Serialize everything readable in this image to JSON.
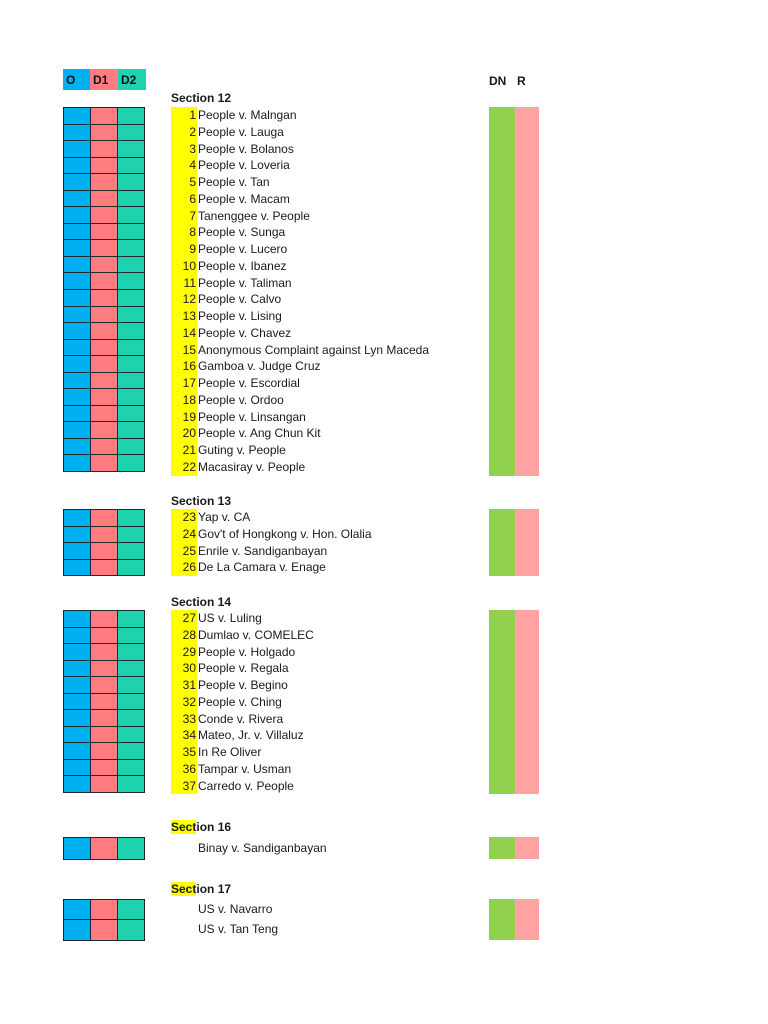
{
  "legend": {
    "o": "O",
    "d1": "D1",
    "d2": "D2"
  },
  "columns": {
    "dn": "DN",
    "r": "R"
  },
  "colors": {
    "o": "#00B0F0",
    "d1": "#FF7C80",
    "d2": "#1ED2B0",
    "number_highlight": "#FFFF00",
    "dn": "#92D050",
    "r": "#FFA3A3"
  },
  "sections": [
    {
      "title_highlight": "",
      "title": "Section 12",
      "cases": [
        {
          "num": "1",
          "name": "People v. Malngan"
        },
        {
          "num": "2",
          "name": "People v. Lauga"
        },
        {
          "num": "3",
          "name": "People v. Bolanos"
        },
        {
          "num": "4",
          "name": "People v. Loveria"
        },
        {
          "num": "5",
          "name": "People v. Tan"
        },
        {
          "num": "6",
          "name": "People v. Macam"
        },
        {
          "num": "7",
          "name": "Tanenggee v. People"
        },
        {
          "num": "8",
          "name": "People v. Sunga"
        },
        {
          "num": "9",
          "name": "People v. Lucero"
        },
        {
          "num": "10",
          "name": "People v. Ibanez"
        },
        {
          "num": "11",
          "name": "People v. Taliman"
        },
        {
          "num": "12",
          "name": "People v. Calvo"
        },
        {
          "num": "13",
          "name": "People v. Lising"
        },
        {
          "num": "14",
          "name": "People v. Chavez"
        },
        {
          "num": "15",
          "name": "Anonymous Complaint against Lyn Maceda"
        },
        {
          "num": "16",
          "name": "Gamboa v. Judge Cruz"
        },
        {
          "num": "17",
          "name": "People v. Escordial"
        },
        {
          "num": "18",
          "name": "People v. Ordoo"
        },
        {
          "num": "19",
          "name": "People v. Linsangan"
        },
        {
          "num": "20",
          "name": "People v. Ang Chun Kit"
        },
        {
          "num": "21",
          "name": "Guting v. People"
        },
        {
          "num": "22",
          "name": "Macasiray v. People"
        }
      ]
    },
    {
      "title_highlight": "",
      "title": "Section 13",
      "cases": [
        {
          "num": "23",
          "name": "Yap v. CA"
        },
        {
          "num": "24",
          "name": "Gov't of Hongkong v. Hon. Olalia"
        },
        {
          "num": "25",
          "name": "Enrile v. Sandiganbayan"
        },
        {
          "num": "26",
          "name": "De La Camara v. Enage"
        }
      ]
    },
    {
      "title_highlight": "",
      "title": "Section 14",
      "cases": [
        {
          "num": "27",
          "name": "US v. Luling"
        },
        {
          "num": "28",
          "name": "Dumlao v. COMELEC"
        },
        {
          "num": "29",
          "name": "People v. Holgado"
        },
        {
          "num": "30",
          "name": "People v. Regala"
        },
        {
          "num": "31",
          "name": "People v. Begino"
        },
        {
          "num": "32",
          "name": "People v. Ching"
        },
        {
          "num": "33",
          "name": "Conde v. Rivera"
        },
        {
          "num": "34",
          "name": "Mateo, Jr. v. Villaluz"
        },
        {
          "num": "35",
          "name": "In Re Oliver"
        },
        {
          "num": "36",
          "name": "Tampar v. Usman"
        },
        {
          "num": "37",
          "name": "Carredo v. People"
        }
      ]
    },
    {
      "title_highlight": "Sect",
      "title": "ion 16",
      "cases": [
        {
          "num": "",
          "name": "Binay v. Sandiganbayan"
        }
      ]
    },
    {
      "title_highlight": "Sect",
      "title": "ion 17",
      "cases": [
        {
          "num": "",
          "name": "US v. Navarro"
        },
        {
          "num": "",
          "name": "US v. Tan Teng"
        }
      ]
    }
  ]
}
